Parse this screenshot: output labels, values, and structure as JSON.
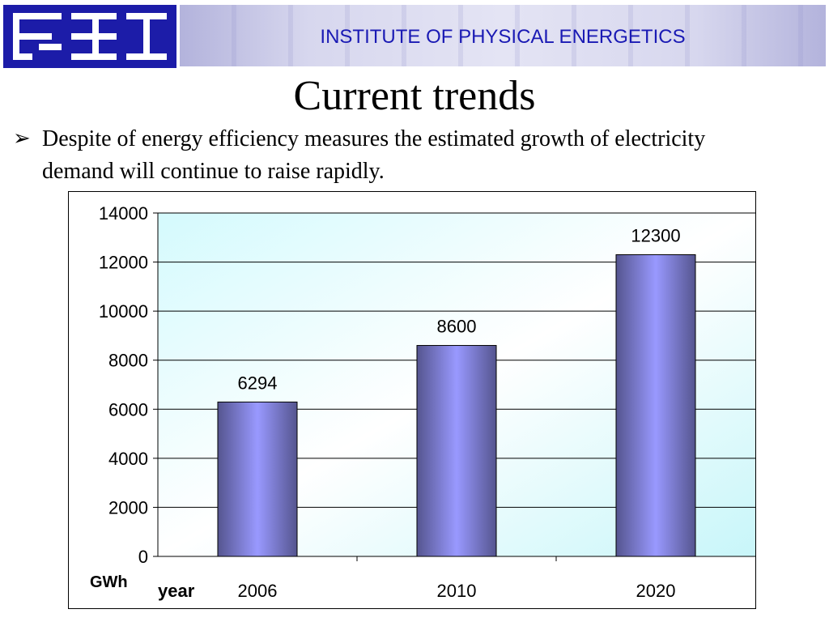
{
  "header": {
    "institute": "INSTITUTE OF PHYSICAL ENERGETICS"
  },
  "slide": {
    "title": "Current trends",
    "bullet": "Despite of energy efficiency measures the estimated growth of electricity demand will continue to raise rapidly."
  },
  "colors": {
    "header_text": "#1a1ab4",
    "logo_blue": "#1c1ca8",
    "bar": "#9999ff",
    "bar_dark": "#55558f",
    "plot_bg_light": "#d9fbfd"
  },
  "chart_data": {
    "type": "bar",
    "categories": [
      "2006",
      "2010",
      "2020"
    ],
    "values": [
      6294,
      8600,
      12300
    ],
    "data_labels": [
      "6294",
      "8600",
      "12300"
    ],
    "ylabel": "GWh",
    "xlabel": "year",
    "ylim": [
      0,
      14000
    ],
    "yticks": [
      "0",
      "2000",
      "4000",
      "6000",
      "8000",
      "10000",
      "12000",
      "14000"
    ],
    "grid": true,
    "legend": "none"
  }
}
